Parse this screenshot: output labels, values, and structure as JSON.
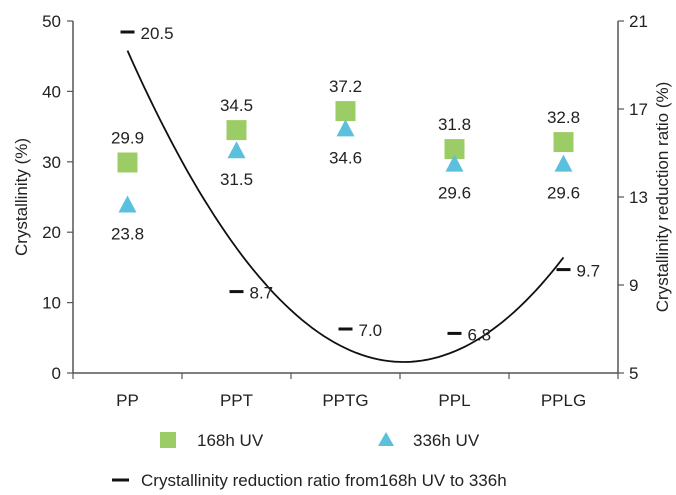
{
  "chart_data": {
    "type": "scatter",
    "categories": [
      "PP",
      "PPT",
      "PPTG",
      "PPL",
      "PPLG"
    ],
    "ylabel": "Crystallinity (%)",
    "y2label": "Crystallinity reduction ratio (%)",
    "ylim": [
      0,
      50
    ],
    "yticks": [
      0,
      10,
      20,
      30,
      40,
      50
    ],
    "y2lim": [
      5,
      21
    ],
    "y2ticks": [
      5,
      9,
      13,
      17,
      21
    ],
    "series": [
      {
        "name": "168h UV",
        "marker": "square",
        "color": "#9ccc65",
        "values": [
          29.9,
          34.5,
          37.2,
          31.8,
          32.8
        ],
        "labels": [
          "29.9",
          "34.5",
          "37.2",
          "31.8",
          "32.8"
        ]
      },
      {
        "name": "336h UV",
        "marker": "triangle",
        "color": "#5bc0de",
        "values": [
          23.8,
          31.5,
          34.6,
          29.6,
          29.6
        ],
        "labels": [
          "23.8",
          "31.5",
          "34.6",
          "29.6",
          "29.6"
        ]
      },
      {
        "name": "Crystallinity reduction ratio from168h UV to 336h",
        "marker": "dash",
        "color": "#111111",
        "axis": "secondary",
        "values": [
          20.5,
          8.7,
          7.0,
          6.8,
          9.7
        ],
        "labels": [
          "20.5",
          "8.7",
          "7.0",
          "6.8",
          "9.7"
        ]
      }
    ],
    "trendline": {
      "type": "polynomial",
      "order": 2,
      "axis": "secondary"
    },
    "grid": false,
    "legend": "bottom"
  }
}
